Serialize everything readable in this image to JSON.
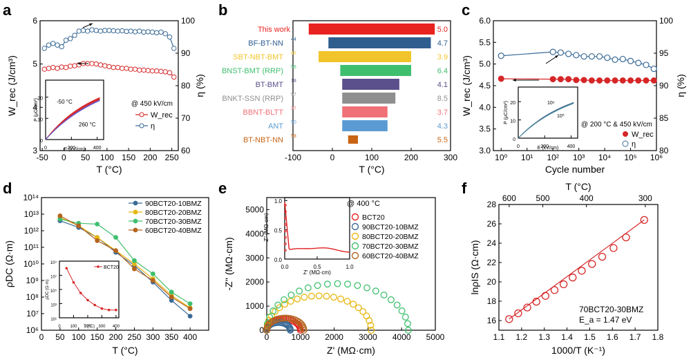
{
  "panels": {
    "a": {
      "letter": "a"
    },
    "b": {
      "letter": "b"
    },
    "c": {
      "letter": "c"
    },
    "d": {
      "letter": "d"
    },
    "e": {
      "letter": "e"
    },
    "f": {
      "letter": "f"
    }
  },
  "colors": {
    "red": "#d62728",
    "blue": "#3a6a96",
    "navy": "#233a78",
    "gold": "#e8b712",
    "green": "#3fbf6e",
    "brown": "#b4641e",
    "purple": "#5a4f8c",
    "grey": "#8c8c8c",
    "pink": "#f07077",
    "lightblue": "#5a9bd3",
    "orange": "#c86414"
  },
  "chart_data": [
    {
      "id": "a",
      "type": "line",
      "xlabel": "T (°C)",
      "ylabel": "W_rec (J/cm³)",
      "y2label": "η (%)",
      "xlim": [
        -55,
        265
      ],
      "ylim": [
        3,
        6
      ],
      "y2lim": [
        60,
        100
      ],
      "xticks": [
        "-50",
        "0",
        "50",
        "100",
        "150",
        "200",
        "250"
      ],
      "yticks": [
        "3",
        "4",
        "5",
        "6"
      ],
      "y2ticks": [
        "60",
        "70",
        "80",
        "90",
        "100"
      ],
      "annotation": "@ 450 kV/cm",
      "series": [
        {
          "name": "W_rec",
          "axis": "left",
          "x": [
            -45,
            -35,
            -25,
            -15,
            -5,
            5,
            15,
            25,
            35,
            45,
            55,
            65,
            75,
            85,
            95,
            105,
            115,
            125,
            135,
            145,
            155,
            165,
            175,
            185,
            195,
            205,
            215,
            225,
            235,
            245,
            255
          ],
          "y": [
            4.88,
            4.9,
            4.92,
            4.9,
            4.93,
            4.92,
            4.95,
            4.96,
            4.98,
            5.01,
            5.01,
            5.01,
            5.0,
            4.98,
            4.96,
            4.94,
            4.92,
            4.92,
            4.9,
            4.9,
            4.88,
            4.88,
            4.86,
            4.86,
            4.85,
            4.84,
            4.84,
            4.83,
            4.82,
            4.8,
            4.7
          ]
        },
        {
          "name": "η",
          "axis": "right",
          "x": [
            -45,
            -35,
            -25,
            -15,
            -5,
            5,
            15,
            25,
            35,
            45,
            55,
            65,
            75,
            85,
            95,
            105,
            115,
            125,
            135,
            145,
            155,
            165,
            175,
            185,
            195,
            205,
            215,
            225,
            235,
            245,
            255
          ],
          "y": [
            91.5,
            92.5,
            93.0,
            92.5,
            92.0,
            94.0,
            94.5,
            95.5,
            96.8,
            97.0,
            96.8,
            97.2,
            97.0,
            96.8,
            97.0,
            97.0,
            96.9,
            96.8,
            96.9,
            96.7,
            96.8,
            96.6,
            96.8,
            96.5,
            96.6,
            96.5,
            96.3,
            96.5,
            96.0,
            95.0,
            91.5
          ]
        }
      ],
      "inset": {
        "xlabel": "E (kV/cm)",
        "ylabel": "P (μC/cm²)",
        "xticks": [
          "0",
          "200",
          "400"
        ],
        "yticks": [
          "0",
          "10",
          "20"
        ],
        "labels": [
          "-50 °C",
          "260 °C"
        ]
      }
    },
    {
      "id": "b",
      "type": "bar",
      "xlabel": "T (°C)",
      "xlim": [
        -100,
        300
      ],
      "xticks": [
        "-100",
        "0",
        "100",
        "200",
        "300"
      ],
      "categories": [
        {
          "label": "This work",
          "sup": "",
          "color": "#e8231f",
          "start": -60,
          "end": 260,
          "value": "5.0"
        },
        {
          "label": "BF-BT-NN",
          "sup": "44",
          "color": "#2f5d8e",
          "start": -10,
          "end": 250,
          "value": "4.7"
        },
        {
          "label": "SBT-NBT-BMT",
          "sup": "45",
          "color": "#f2c42b",
          "start": -35,
          "end": 200,
          "value": "3.9"
        },
        {
          "label": "BNST-BMT (RRP)",
          "sup": "56",
          "color": "#3fbf6e",
          "start": 20,
          "end": 200,
          "value": "6.4"
        },
        {
          "label": "BT-BMT",
          "sup": "18",
          "color": "#5b4f8c",
          "start": 25,
          "end": 170,
          "value": "4.1"
        },
        {
          "label": "BNKT-SSN (RRP)",
          "sup": "57",
          "color": "#8f8f8f",
          "start": 25,
          "end": 160,
          "value": "8.5"
        },
        {
          "label": "BBNT-BLTT",
          "sup": "37",
          "color": "#f07077",
          "start": 25,
          "end": 140,
          "value": "3.7"
        },
        {
          "label": "ANT",
          "sup": "50",
          "color": "#5a9bd3",
          "start": 25,
          "end": 140,
          "value": "4.3"
        },
        {
          "label": "BT-NBT-NN",
          "sup": "58",
          "color": "#c86414",
          "start": 40,
          "end": 65,
          "value": "5.5"
        }
      ]
    },
    {
      "id": "c",
      "type": "line",
      "xlabel": "Cycle number",
      "ylabel": "W_rec (J/cm³)",
      "y2label": "η (%)",
      "xlim_log": [
        -0.3,
        6
      ],
      "ylim": [
        3,
        6
      ],
      "y2lim": [
        80,
        100
      ],
      "xticks": [
        "10⁰",
        "10¹",
        "10²",
        "10³",
        "10⁴",
        "10⁵",
        "10⁶"
      ],
      "yticks": [
        "3.0",
        "3.5",
        "4.0",
        "4.5",
        "5.0",
        "5.5",
        "6.0"
      ],
      "y2ticks": [
        "80",
        "85",
        "90",
        "95",
        "100"
      ],
      "annotation": "@ 200 °C & 450 kV/cm",
      "series": [
        {
          "name": "W_rec",
          "axis": "left",
          "x_log": [
            0,
            2,
            2.3,
            2.6,
            2.9,
            3.2,
            3.5,
            3.8,
            4.1,
            4.4,
            4.7,
            5.0,
            5.3,
            5.6,
            5.9
          ],
          "y": [
            4.66,
            4.65,
            4.65,
            4.65,
            4.63,
            4.63,
            4.62,
            4.62,
            4.62,
            4.62,
            4.62,
            4.62,
            4.62,
            4.62,
            4.62
          ]
        },
        {
          "name": "η",
          "axis": "right",
          "x_log": [
            0,
            2,
            2.3,
            2.6,
            2.9,
            3.2,
            3.5,
            3.8,
            4.1,
            4.4,
            4.7,
            5.0,
            5.3,
            5.6,
            5.9
          ],
          "y": [
            94.6,
            95.2,
            95.1,
            94.9,
            94.7,
            94.5,
            94.5,
            94.5,
            94.3,
            94.0,
            94.1,
            93.8,
            93.5,
            93.2,
            92.6
          ]
        }
      ],
      "inset": {
        "xlabel": "E (kV/cm)",
        "ylabel": "P (μC/cm²)",
        "xticks": [
          "0",
          "200",
          "400"
        ],
        "yticks": [
          "0",
          "10",
          "20"
        ],
        "labels": [
          "10⁶",
          "10⁰"
        ]
      }
    },
    {
      "id": "d",
      "type": "line",
      "yscale": "log",
      "xlabel": "T (°C)",
      "ylabel": "ρDC (Ω·m)",
      "xlim": [
        0,
        450
      ],
      "ylim_log": [
        6,
        14
      ],
      "xticks": [
        "0",
        "50",
        "100",
        "150",
        "200",
        "250",
        "300",
        "350",
        "400"
      ],
      "yticks": [
        "10⁶",
        "10⁷",
        "10⁸",
        "10⁹",
        "10¹⁰",
        "10¹¹",
        "10¹²",
        "10¹³",
        "10¹⁴"
      ],
      "series": [
        {
          "name": "90BCT20-10BMZ",
          "color": "#3a6a96",
          "x": [
            50,
            100,
            150,
            200,
            250,
            300,
            350,
            400
          ],
          "y_log": [
            12.6,
            12.2,
            11.6,
            10.7,
            9.9,
            8.9,
            7.8,
            6.85
          ]
        },
        {
          "name": "80BCT20-20BMZ",
          "color": "#e8b712",
          "x": [
            50,
            100,
            150,
            200,
            250,
            300,
            350,
            400
          ],
          "y_log": [
            12.8,
            12.3,
            11.6,
            10.8,
            10.0,
            9.1,
            8.1,
            7.35
          ]
        },
        {
          "name": "70BCT20-30BMZ",
          "color": "#3fbf6e",
          "x": [
            50,
            100,
            150,
            200,
            250,
            300,
            350,
            400
          ],
          "y_log": [
            12.7,
            12.45,
            12.4,
            11.6,
            10.2,
            9.4,
            8.3,
            7.6
          ]
        },
        {
          "name": "60BCT20-40BMZ",
          "color": "#b4641e",
          "x": [
            50,
            100,
            150,
            200,
            250,
            300,
            350,
            400
          ],
          "y_log": [
            12.9,
            12.3,
            11.4,
            10.8,
            9.7,
            9.0,
            8.0,
            7.3
          ]
        }
      ],
      "inset": {
        "legend": "BCT20",
        "xlabel": "T (°C)",
        "ylabel": "ρDC (Ω·m)",
        "xticks": [
          "0",
          "100",
          "200",
          "300",
          "400"
        ],
        "yticks": [
          "10¹",
          "10³",
          "10⁵",
          "10⁷",
          "10⁹"
        ],
        "x": [
          50,
          100,
          150,
          200,
          250,
          300,
          350,
          400
        ],
        "y_log": [
          8.0,
          6.0,
          4.5,
          3.5,
          2.8,
          2.3,
          2.1,
          2.1
        ]
      }
    },
    {
      "id": "e",
      "type": "scatter",
      "xlabel": "Z' (MΩ·cm)",
      "ylabel": "-Z'' (MΩ·cm)",
      "xlim": [
        0,
        5000
      ],
      "ylim": [
        0,
        5500
      ],
      "xticks": [
        "0",
        "1000",
        "2000",
        "3000",
        "4000",
        "5000"
      ],
      "yticks": [
        "0",
        "1000",
        "2000",
        "3000",
        "4000",
        "5000"
      ],
      "annotation": "@ 400 °C",
      "series": [
        {
          "name": "BCT20",
          "color": "#e82020",
          "diameter": 1000
        },
        {
          "name": "90BCT20-10BMZ",
          "color": "#3a6a96",
          "diameter": 700
        },
        {
          "name": "80BCT20-20BMZ",
          "color": "#e8b712",
          "diameter": 3100
        },
        {
          "name": "70BCT20-30BMZ",
          "color": "#3fbf6e",
          "diameter": 4200
        },
        {
          "name": "60BCT20-40BMZ",
          "color": "#b4641e",
          "diameter": 1100
        }
      ],
      "inset": {
        "xlabel": "Z' (MΩ·cm)",
        "ylabel": "-Z'' (MΩ·cm)",
        "xticks": [
          "0.0",
          "0.5",
          "1.0"
        ],
        "yticks": [
          "0.0",
          "0.5",
          "1.0"
        ]
      }
    },
    {
      "id": "f",
      "type": "scatter",
      "xlabel": "1000/T (K⁻¹)",
      "ylabel": "lnρIS (Ω·cm)",
      "x2label": "T (°C)",
      "xlim": [
        1.1,
        1.8
      ],
      "ylim": [
        15,
        28
      ],
      "xticks": [
        "1.1",
        "1.2",
        "1.3",
        "1.4",
        "1.5",
        "1.6",
        "1.7",
        "1.8"
      ],
      "x2ticks": [
        "600",
        "500",
        "400",
        "300"
      ],
      "yticks": [
        "16",
        "18",
        "20",
        "22",
        "24",
        "26",
        "28"
      ],
      "series": [
        {
          "name": "70BCT20-30BMZ",
          "x": [
            1.145,
            1.185,
            1.225,
            1.265,
            1.305,
            1.345,
            1.385,
            1.425,
            1.465,
            1.51,
            1.555,
            1.605,
            1.66,
            1.74
          ],
          "y": [
            16.15,
            16.75,
            17.35,
            17.95,
            18.55,
            19.15,
            19.75,
            20.45,
            21.15,
            21.85,
            22.6,
            23.5,
            24.6,
            26.4
          ]
        }
      ],
      "label1": "70BCT20-30BMZ",
      "label2": "E_a = 1.47 eV"
    }
  ]
}
